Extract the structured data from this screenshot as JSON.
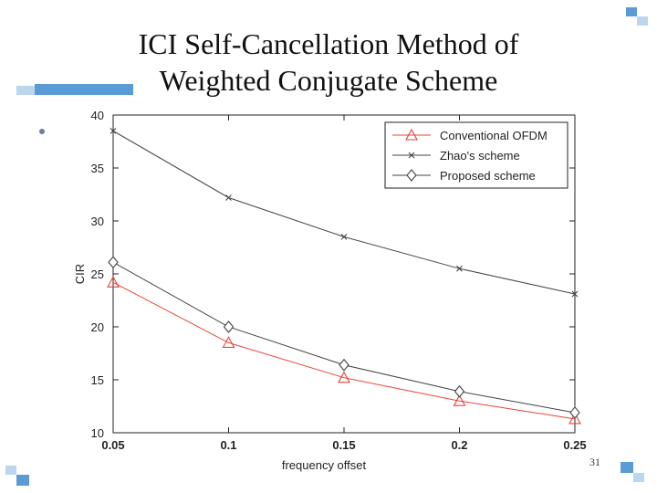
{
  "slide": {
    "title_line1": "ICI Self-Cancellation Method of",
    "title_line2": "Weighted Conjugate Scheme",
    "page_number": "31",
    "accent_color": "#5b9bd5"
  },
  "chart_data": {
    "type": "line",
    "title": "",
    "xlabel": "frequency offset",
    "ylabel": "CIR",
    "x": [
      0.05,
      0.1,
      0.15,
      0.2,
      0.25
    ],
    "x_tick_labels": [
      "0.05",
      "0.1",
      "0.15",
      "0.2",
      "0.25"
    ],
    "ylim": [
      10,
      40
    ],
    "y_ticks": [
      10,
      15,
      20,
      25,
      30,
      35,
      40
    ],
    "grid": false,
    "legend_position": "top-right",
    "series": [
      {
        "name": "Conventional OFDM",
        "values": [
          24.2,
          18.5,
          15.2,
          13.0,
          11.3
        ],
        "color": "#e8443a",
        "marker": "triangle"
      },
      {
        "name": "Zhao's scheme",
        "values": [
          38.5,
          32.2,
          28.5,
          25.5,
          23.1
        ],
        "color": "#444444",
        "marker": "x"
      },
      {
        "name": "Proposed scheme",
        "values": [
          26.1,
          20.0,
          16.4,
          13.9,
          11.9
        ],
        "color": "#444444",
        "marker": "diamond"
      }
    ]
  }
}
